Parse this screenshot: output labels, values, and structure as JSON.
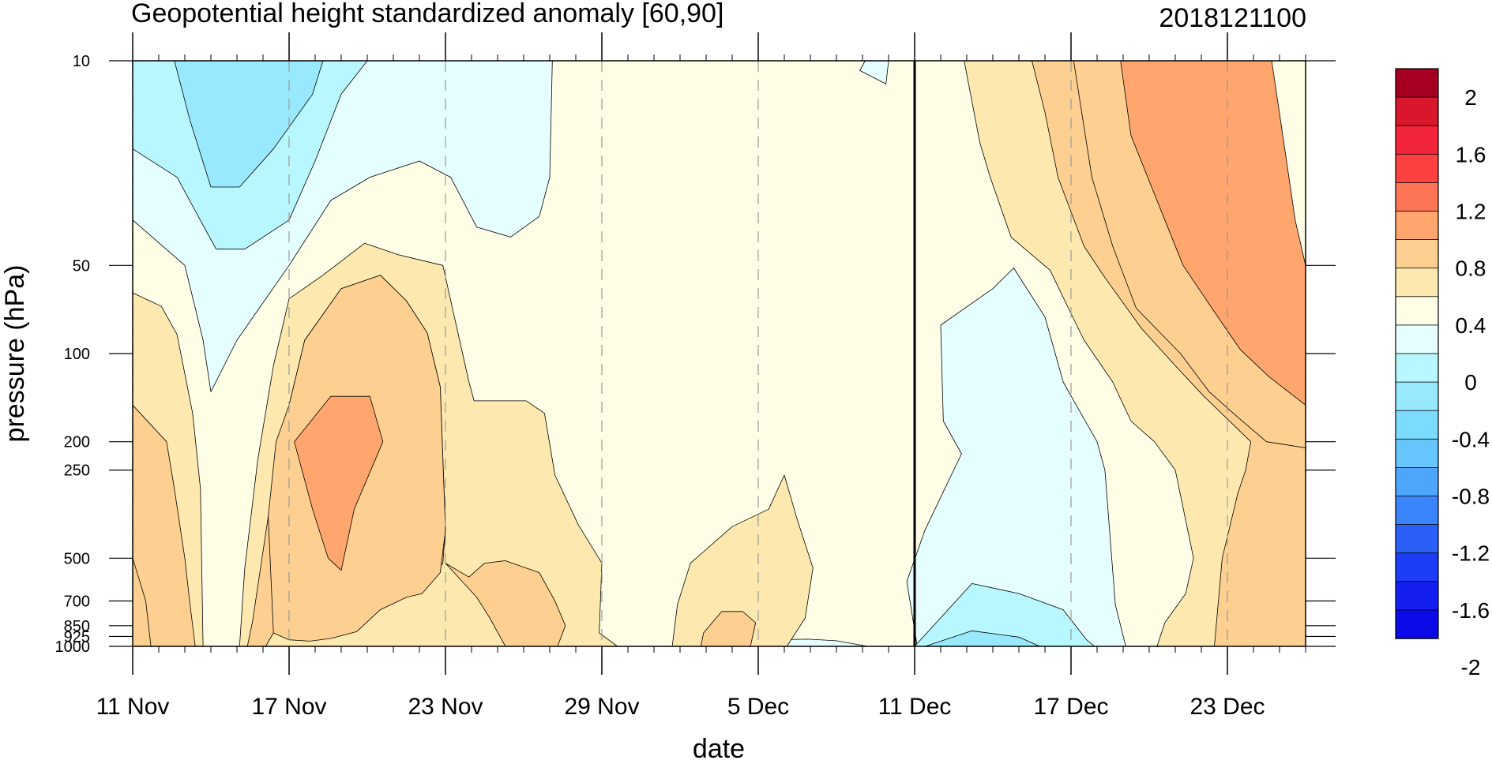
{
  "chart_data": {
    "type": "heatmap",
    "subtype": "filled-contour time-pressure cross-section",
    "title": "Geopotential height standardized anomaly [60,90]",
    "init_label": "2018121100",
    "xlabel": "date",
    "ylabel": "pressure (hPa)",
    "x_ticks": [
      "11 Nov",
      "17 Nov",
      "23 Nov",
      "29 Nov",
      "5 Dec",
      "11 Dec",
      "17 Dec",
      "23 Dec"
    ],
    "x_tick_days": [
      0,
      6,
      12,
      18,
      24,
      30,
      36,
      42
    ],
    "x_range_days": [
      0,
      45
    ],
    "y_scale": "log",
    "y_reversed": true,
    "y_ticks": [
      10,
      50,
      100,
      200,
      250,
      500,
      700,
      850,
      925,
      1000
    ],
    "y_tick_labels": [
      "10",
      "50",
      "100",
      "200",
      "250",
      "500",
      "700",
      "850",
      "925",
      "1000"
    ],
    "y_range": [
      1000,
      10
    ],
    "analysis_line_day": 30,
    "dashed_gridlines": true,
    "colorbar": {
      "labels": [
        "2",
        "1.6",
        "1.2",
        "0.8",
        "0.4",
        "0",
        "-0.4",
        "-0.8",
        "-1.2",
        "-1.6",
        "-2"
      ],
      "label_values": [
        2,
        1.6,
        1.2,
        0.8,
        0.4,
        0,
        -0.4,
        -0.8,
        -1.2,
        -1.6,
        -2
      ],
      "colors_top_to_bottom": [
        "#a50021",
        "#d8162c",
        "#f2253a",
        "#fd4040",
        "#fe7556",
        "#fea66d",
        "#fdcf90",
        "#fde9b0",
        "#fefde6",
        "#e5feff",
        "#b9f7fe",
        "#99e9fe",
        "#7cdcfd",
        "#66c5fd",
        "#4ea6fc",
        "#3a85fb",
        "#2a5ff8",
        "#1c3cf5",
        "#141ef1",
        "#0c0ae6"
      ]
    },
    "level_fills": {
      "-0.6": "#99e9fe",
      "-0.4": "#b9f7fe",
      "-0.2": "#e5feff",
      "0": "#fefde6",
      "0.2": "#fde9b0",
      "0.4": "#fdcf90",
      "0.6": "#fdcf90",
      "0.8": "#fea66d",
      "1.0": "#fe7556"
    },
    "contour_regions": [
      {
        "level": 0,
        "points": [
          [
            0,
            10
          ],
          [
            45,
            10
          ],
          [
            45,
            1000
          ],
          [
            0,
            1000
          ]
        ]
      },
      {
        "level": -0.2,
        "points": [
          [
            0,
            10
          ],
          [
            16.1,
            10
          ],
          [
            16,
            25
          ],
          [
            15.6,
            34
          ],
          [
            14.5,
            40
          ],
          [
            13.2,
            37
          ],
          [
            12.2,
            25
          ],
          [
            11,
            22
          ],
          [
            9.1,
            25
          ],
          [
            7.6,
            30
          ],
          [
            6,
            50
          ],
          [
            4,
            90
          ],
          [
            3,
            135
          ],
          [
            2.7,
            90
          ],
          [
            2,
            50
          ],
          [
            0,
            35
          ]
        ]
      },
      {
        "level": -0.4,
        "points": [
          [
            0,
            10
          ],
          [
            9,
            10
          ],
          [
            8,
            13
          ],
          [
            7,
            22
          ],
          [
            6,
            35
          ],
          [
            4.3,
            44
          ],
          [
            3.2,
            44
          ],
          [
            1.7,
            25
          ],
          [
            0,
            20
          ]
        ]
      },
      {
        "level": -0.6,
        "points": [
          [
            1.6,
            10
          ],
          [
            7.3,
            10
          ],
          [
            6.9,
            13
          ],
          [
            5.4,
            20
          ],
          [
            4.1,
            27
          ],
          [
            3,
            27
          ],
          [
            2.2,
            16
          ]
        ]
      },
      {
        "level": -0.2,
        "points": [
          [
            28.1,
            10
          ],
          [
            29,
            10
          ],
          [
            28.9,
            12
          ],
          [
            27.9,
            10.8
          ]
        ]
      },
      {
        "level": -0.2,
        "points": [
          [
            29.3,
            1000
          ],
          [
            28.2,
            1000
          ],
          [
            27,
            957
          ],
          [
            25.9,
            945
          ],
          [
            24.5,
            950
          ],
          [
            23.1,
            1000
          ]
        ]
      },
      {
        "level": -0.2,
        "points": [
          [
            31,
            1000
          ],
          [
            30.1,
            1000
          ],
          [
            29.7,
            600
          ],
          [
            30.4,
            400
          ],
          [
            31.8,
            220
          ],
          [
            31.1,
            170
          ],
          [
            31,
            80
          ],
          [
            33,
            60
          ],
          [
            33.8,
            51
          ],
          [
            35,
            75
          ],
          [
            35.7,
            125
          ],
          [
            36.2,
            150
          ],
          [
            37,
            200
          ],
          [
            37.3,
            250
          ],
          [
            37.7,
            720
          ],
          [
            38.1,
            1000
          ]
        ]
      },
      {
        "level": -0.4,
        "points": [
          [
            30,
            1000
          ],
          [
            32.2,
            610
          ],
          [
            34,
            660
          ],
          [
            35.7,
            750
          ],
          [
            36.6,
            950
          ],
          [
            36.9,
            1000
          ]
        ]
      },
      {
        "level": -0.6,
        "points": [
          [
            30.4,
            1000
          ],
          [
            32.2,
            885
          ],
          [
            34,
            930
          ],
          [
            34.8,
            1000
          ]
        ]
      },
      {
        "level": 0.2,
        "points": [
          [
            0,
            62
          ],
          [
            1.1,
            69
          ],
          [
            1.7,
            86
          ],
          [
            2.3,
            160
          ],
          [
            2.6,
            290
          ],
          [
            2.7,
            1000
          ],
          [
            0,
            1000
          ]
        ]
      },
      {
        "level": 0.4,
        "points": [
          [
            0,
            150
          ],
          [
            1.3,
            200
          ],
          [
            1.6,
            290
          ],
          [
            2,
            500
          ],
          [
            2.2,
            720
          ],
          [
            2.4,
            1000
          ],
          [
            0,
            1000
          ]
        ]
      },
      {
        "level": 0.6,
        "points": [
          [
            0,
            500
          ],
          [
            0.5,
            700
          ],
          [
            0.7,
            1000
          ],
          [
            0,
            1000
          ]
        ]
      },
      {
        "level": 0.2,
        "points": [
          [
            4.1,
            1000
          ],
          [
            4.3,
            540
          ],
          [
            4.8,
            230
          ],
          [
            5.4,
            110
          ],
          [
            6,
            65
          ],
          [
            7.3,
            54
          ],
          [
            8.9,
            42
          ],
          [
            10.2,
            46
          ],
          [
            11.9,
            50
          ],
          [
            12.9,
            125
          ],
          [
            13.1,
            145
          ],
          [
            15.1,
            145
          ],
          [
            15.8,
            160
          ],
          [
            16.2,
            260
          ],
          [
            17.1,
            385
          ],
          [
            18,
            520
          ],
          [
            17.9,
            900
          ],
          [
            18.6,
            1000
          ]
        ]
      },
      {
        "level": 0.4,
        "points": [
          [
            4.4,
            1000
          ],
          [
            4.6,
            820
          ],
          [
            5.2,
            360
          ],
          [
            6,
            150
          ],
          [
            6.6,
            90
          ],
          [
            8,
            60
          ],
          [
            9.5,
            54
          ],
          [
            10.5,
            66
          ],
          [
            11.3,
            85
          ],
          [
            11.8,
            130
          ],
          [
            12,
            400
          ],
          [
            11.9,
            520
          ],
          [
            11.1,
            650
          ],
          [
            10.5,
            665
          ],
          [
            9.5,
            740
          ],
          [
            8.6,
            880
          ],
          [
            8,
            895
          ],
          [
            7.6,
            935
          ],
          [
            6.8,
            950
          ],
          [
            6,
            930
          ],
          [
            5.4,
            900
          ],
          [
            5.1,
            1000
          ]
        ]
      },
      {
        "level": 0.6,
        "points": [
          [
            5.4,
            900
          ],
          [
            6,
            950
          ],
          [
            6.8,
            960
          ],
          [
            7.6,
            940
          ],
          [
            8.6,
            890
          ],
          [
            9.5,
            750
          ],
          [
            10.5,
            680
          ],
          [
            11.1,
            660
          ],
          [
            11.8,
            560
          ],
          [
            12,
            400
          ],
          [
            11.8,
            130
          ],
          [
            11.3,
            85
          ],
          [
            10.5,
            66
          ],
          [
            9.5,
            54
          ],
          [
            8,
            60
          ],
          [
            6.6,
            90
          ],
          [
            6,
            150
          ],
          [
            5.5,
            200
          ],
          [
            5.2,
            360
          ]
        ]
      },
      {
        "level": 0.8,
        "points": [
          [
            6.2,
            200
          ],
          [
            7.6,
            140
          ],
          [
            9.1,
            140
          ],
          [
            9.6,
            200
          ],
          [
            8.5,
            340
          ],
          [
            8,
            550
          ],
          [
            7.5,
            500
          ],
          [
            6.9,
            340
          ]
        ]
      },
      {
        "level": 0.4,
        "points": [
          [
            12,
            520
          ],
          [
            13.2,
            680
          ],
          [
            13.7,
            800
          ],
          [
            14.3,
            1000
          ],
          [
            16.3,
            1000
          ],
          [
            16.6,
            850
          ],
          [
            16.2,
            700
          ],
          [
            15.6,
            560
          ],
          [
            14.3,
            510
          ],
          [
            13.5,
            520
          ],
          [
            12.9,
            580
          ]
        ]
      },
      {
        "level": 0.2,
        "points": [
          [
            20.7,
            1000
          ],
          [
            20.9,
            720
          ],
          [
            21.4,
            520
          ],
          [
            23,
            390
          ],
          [
            24.4,
            340
          ],
          [
            25,
            260
          ],
          [
            25.5,
            370
          ],
          [
            26.1,
            540
          ],
          [
            25.8,
            800
          ],
          [
            25.1,
            1000
          ]
        ]
      },
      {
        "level": 0.4,
        "points": [
          [
            21.8,
            1000
          ],
          [
            21.9,
            900
          ],
          [
            22.6,
            760
          ],
          [
            23.4,
            760
          ],
          [
            23.9,
            830
          ],
          [
            23.7,
            1000
          ]
        ]
      },
      {
        "level": 0.2,
        "points": [
          [
            45,
            10
          ],
          [
            45,
            1000
          ],
          [
            39.3,
            1000
          ],
          [
            39.6,
            830
          ],
          [
            40.4,
            660
          ],
          [
            40.7,
            500
          ],
          [
            40,
            250
          ],
          [
            39.2,
            200
          ],
          [
            38.3,
            170
          ],
          [
            37.6,
            125
          ],
          [
            36.5,
            90
          ],
          [
            35.9,
            70
          ],
          [
            35.2,
            52
          ],
          [
            33.7,
            40
          ],
          [
            32.9,
            25
          ],
          [
            32.5,
            19
          ],
          [
            31.9,
            10
          ]
        ]
      },
      {
        "level": 0.4,
        "points": [
          [
            45,
            10
          ],
          [
            45,
            1000
          ],
          [
            41.5,
            1000
          ],
          [
            41.8,
            500
          ],
          [
            42.4,
            300
          ],
          [
            42.7,
            250
          ],
          [
            42.9,
            200
          ],
          [
            41.1,
            140
          ],
          [
            40,
            110
          ],
          [
            38.7,
            82
          ],
          [
            37.3,
            55
          ],
          [
            36.5,
            43
          ],
          [
            35.5,
            25
          ],
          [
            35,
            15
          ],
          [
            34.5,
            10
          ]
        ]
      },
      {
        "level": 0.6,
        "points": [
          [
            45,
            10
          ],
          [
            45,
            210
          ],
          [
            43.5,
            200
          ],
          [
            42.4,
            165
          ],
          [
            41.3,
            135
          ],
          [
            40.2,
            100
          ],
          [
            38.5,
            70
          ],
          [
            37.6,
            43
          ],
          [
            36.8,
            25
          ],
          [
            36.1,
            10
          ]
        ]
      },
      {
        "level": 0.8,
        "points": [
          [
            45,
            10
          ],
          [
            45,
            150
          ],
          [
            43.6,
            120
          ],
          [
            42.5,
            97
          ],
          [
            41.5,
            72
          ],
          [
            40.3,
            50
          ],
          [
            39.6,
            35
          ],
          [
            38.3,
            18
          ],
          [
            37.9,
            10
          ]
        ]
      },
      {
        "level": 1.0,
        "points": [
          [
            43.7,
            10
          ],
          [
            45,
            10
          ],
          [
            45,
            50
          ],
          [
            44.6,
            35
          ],
          [
            44.2,
            20
          ]
        ]
      }
    ]
  }
}
